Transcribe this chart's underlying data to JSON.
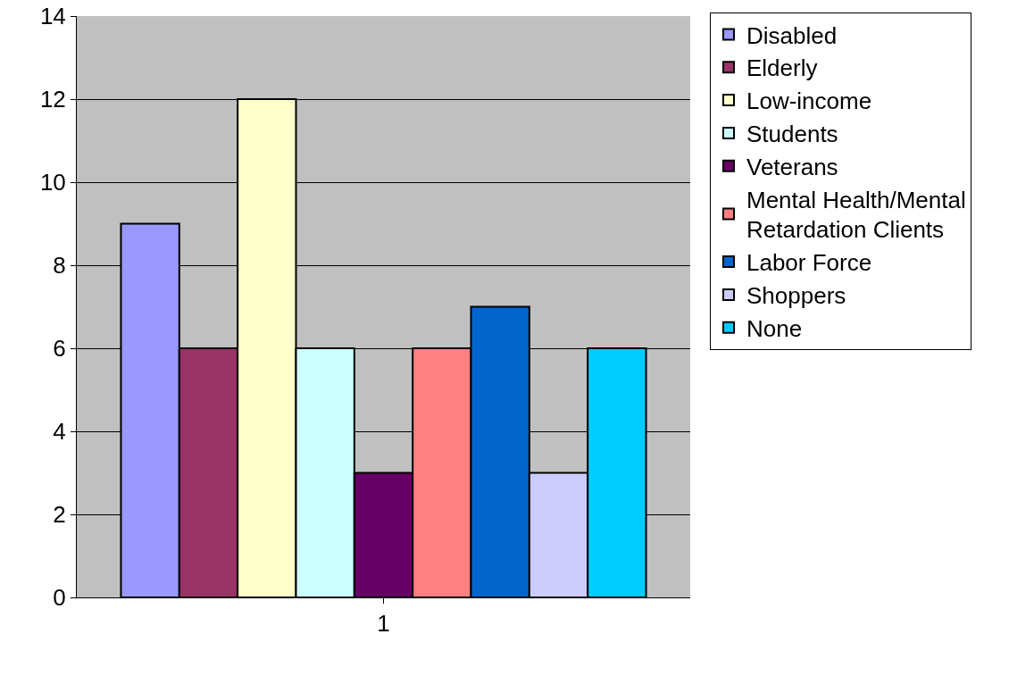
{
  "chart_data": {
    "type": "bar",
    "categories": [
      "1"
    ],
    "series": [
      {
        "name": "Disabled",
        "color": "#9999ff",
        "values": [
          9
        ]
      },
      {
        "name": "Elderly",
        "color": "#993366",
        "values": [
          6
        ]
      },
      {
        "name": "Low-income",
        "color": "#ffffcc",
        "values": [
          12
        ]
      },
      {
        "name": "Students",
        "color": "#ccffff",
        "values": [
          6
        ]
      },
      {
        "name": "Veterans",
        "color": "#660066",
        "values": [
          3
        ]
      },
      {
        "name": "Mental Health/Mental Retardation Clients",
        "color": "#ff8080",
        "values": [
          6
        ]
      },
      {
        "name": "Labor Force",
        "color": "#0066cc",
        "values": [
          7
        ]
      },
      {
        "name": "Shoppers",
        "color": "#ccccff",
        "values": [
          3
        ]
      },
      {
        "name": "None",
        "color": "#00ccff",
        "values": [
          6
        ]
      }
    ],
    "ylim": [
      0,
      14
    ],
    "yticks": [
      0,
      2,
      4,
      6,
      8,
      10,
      12,
      14
    ],
    "grid": "y",
    "legend": "right"
  }
}
